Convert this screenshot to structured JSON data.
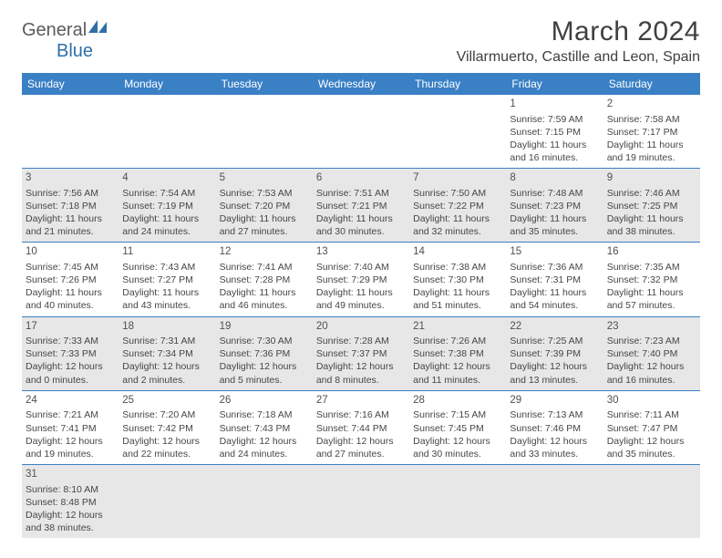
{
  "header": {
    "logo_general": "General",
    "logo_blue": "Blue",
    "month_title": "March 2024",
    "location": "Villarmuerto, Castille and Leon, Spain"
  },
  "day_headers": [
    "Sunday",
    "Monday",
    "Tuesday",
    "Wednesday",
    "Thursday",
    "Friday",
    "Saturday"
  ],
  "colors": {
    "header_bg": "#3a80c5",
    "header_text": "#ffffff",
    "shade_bg": "#e7e7e7",
    "border": "#3a80c5",
    "text": "#464646",
    "logo_gray": "#5b5b5b",
    "logo_blue": "#2f6fa8"
  },
  "weeks": [
    [
      null,
      null,
      null,
      null,
      null,
      {
        "day": "1",
        "sunrise": "Sunrise: 7:59 AM",
        "sunset": "Sunset: 7:15 PM",
        "daylight1": "Daylight: 11 hours",
        "daylight2": "and 16 minutes."
      },
      {
        "day": "2",
        "sunrise": "Sunrise: 7:58 AM",
        "sunset": "Sunset: 7:17 PM",
        "daylight1": "Daylight: 11 hours",
        "daylight2": "and 19 minutes."
      }
    ],
    [
      {
        "day": "3",
        "sunrise": "Sunrise: 7:56 AM",
        "sunset": "Sunset: 7:18 PM",
        "daylight1": "Daylight: 11 hours",
        "daylight2": "and 21 minutes."
      },
      {
        "day": "4",
        "sunrise": "Sunrise: 7:54 AM",
        "sunset": "Sunset: 7:19 PM",
        "daylight1": "Daylight: 11 hours",
        "daylight2": "and 24 minutes."
      },
      {
        "day": "5",
        "sunrise": "Sunrise: 7:53 AM",
        "sunset": "Sunset: 7:20 PM",
        "daylight1": "Daylight: 11 hours",
        "daylight2": "and 27 minutes."
      },
      {
        "day": "6",
        "sunrise": "Sunrise: 7:51 AM",
        "sunset": "Sunset: 7:21 PM",
        "daylight1": "Daylight: 11 hours",
        "daylight2": "and 30 minutes."
      },
      {
        "day": "7",
        "sunrise": "Sunrise: 7:50 AM",
        "sunset": "Sunset: 7:22 PM",
        "daylight1": "Daylight: 11 hours",
        "daylight2": "and 32 minutes."
      },
      {
        "day": "8",
        "sunrise": "Sunrise: 7:48 AM",
        "sunset": "Sunset: 7:23 PM",
        "daylight1": "Daylight: 11 hours",
        "daylight2": "and 35 minutes."
      },
      {
        "day": "9",
        "sunrise": "Sunrise: 7:46 AM",
        "sunset": "Sunset: 7:25 PM",
        "daylight1": "Daylight: 11 hours",
        "daylight2": "and 38 minutes."
      }
    ],
    [
      {
        "day": "10",
        "sunrise": "Sunrise: 7:45 AM",
        "sunset": "Sunset: 7:26 PM",
        "daylight1": "Daylight: 11 hours",
        "daylight2": "and 40 minutes."
      },
      {
        "day": "11",
        "sunrise": "Sunrise: 7:43 AM",
        "sunset": "Sunset: 7:27 PM",
        "daylight1": "Daylight: 11 hours",
        "daylight2": "and 43 minutes."
      },
      {
        "day": "12",
        "sunrise": "Sunrise: 7:41 AM",
        "sunset": "Sunset: 7:28 PM",
        "daylight1": "Daylight: 11 hours",
        "daylight2": "and 46 minutes."
      },
      {
        "day": "13",
        "sunrise": "Sunrise: 7:40 AM",
        "sunset": "Sunset: 7:29 PM",
        "daylight1": "Daylight: 11 hours",
        "daylight2": "and 49 minutes."
      },
      {
        "day": "14",
        "sunrise": "Sunrise: 7:38 AM",
        "sunset": "Sunset: 7:30 PM",
        "daylight1": "Daylight: 11 hours",
        "daylight2": "and 51 minutes."
      },
      {
        "day": "15",
        "sunrise": "Sunrise: 7:36 AM",
        "sunset": "Sunset: 7:31 PM",
        "daylight1": "Daylight: 11 hours",
        "daylight2": "and 54 minutes."
      },
      {
        "day": "16",
        "sunrise": "Sunrise: 7:35 AM",
        "sunset": "Sunset: 7:32 PM",
        "daylight1": "Daylight: 11 hours",
        "daylight2": "and 57 minutes."
      }
    ],
    [
      {
        "day": "17",
        "sunrise": "Sunrise: 7:33 AM",
        "sunset": "Sunset: 7:33 PM",
        "daylight1": "Daylight: 12 hours",
        "daylight2": "and 0 minutes."
      },
      {
        "day": "18",
        "sunrise": "Sunrise: 7:31 AM",
        "sunset": "Sunset: 7:34 PM",
        "daylight1": "Daylight: 12 hours",
        "daylight2": "and 2 minutes."
      },
      {
        "day": "19",
        "sunrise": "Sunrise: 7:30 AM",
        "sunset": "Sunset: 7:36 PM",
        "daylight1": "Daylight: 12 hours",
        "daylight2": "and 5 minutes."
      },
      {
        "day": "20",
        "sunrise": "Sunrise: 7:28 AM",
        "sunset": "Sunset: 7:37 PM",
        "daylight1": "Daylight: 12 hours",
        "daylight2": "and 8 minutes."
      },
      {
        "day": "21",
        "sunrise": "Sunrise: 7:26 AM",
        "sunset": "Sunset: 7:38 PM",
        "daylight1": "Daylight: 12 hours",
        "daylight2": "and 11 minutes."
      },
      {
        "day": "22",
        "sunrise": "Sunrise: 7:25 AM",
        "sunset": "Sunset: 7:39 PM",
        "daylight1": "Daylight: 12 hours",
        "daylight2": "and 13 minutes."
      },
      {
        "day": "23",
        "sunrise": "Sunrise: 7:23 AM",
        "sunset": "Sunset: 7:40 PM",
        "daylight1": "Daylight: 12 hours",
        "daylight2": "and 16 minutes."
      }
    ],
    [
      {
        "day": "24",
        "sunrise": "Sunrise: 7:21 AM",
        "sunset": "Sunset: 7:41 PM",
        "daylight1": "Daylight: 12 hours",
        "daylight2": "and 19 minutes."
      },
      {
        "day": "25",
        "sunrise": "Sunrise: 7:20 AM",
        "sunset": "Sunset: 7:42 PM",
        "daylight1": "Daylight: 12 hours",
        "daylight2": "and 22 minutes."
      },
      {
        "day": "26",
        "sunrise": "Sunrise: 7:18 AM",
        "sunset": "Sunset: 7:43 PM",
        "daylight1": "Daylight: 12 hours",
        "daylight2": "and 24 minutes."
      },
      {
        "day": "27",
        "sunrise": "Sunrise: 7:16 AM",
        "sunset": "Sunset: 7:44 PM",
        "daylight1": "Daylight: 12 hours",
        "daylight2": "and 27 minutes."
      },
      {
        "day": "28",
        "sunrise": "Sunrise: 7:15 AM",
        "sunset": "Sunset: 7:45 PM",
        "daylight1": "Daylight: 12 hours",
        "daylight2": "and 30 minutes."
      },
      {
        "day": "29",
        "sunrise": "Sunrise: 7:13 AM",
        "sunset": "Sunset: 7:46 PM",
        "daylight1": "Daylight: 12 hours",
        "daylight2": "and 33 minutes."
      },
      {
        "day": "30",
        "sunrise": "Sunrise: 7:11 AM",
        "sunset": "Sunset: 7:47 PM",
        "daylight1": "Daylight: 12 hours",
        "daylight2": "and 35 minutes."
      }
    ],
    [
      {
        "day": "31",
        "sunrise": "Sunrise: 8:10 AM",
        "sunset": "Sunset: 8:48 PM",
        "daylight1": "Daylight: 12 hours",
        "daylight2": "and 38 minutes."
      },
      null,
      null,
      null,
      null,
      null,
      null
    ]
  ]
}
